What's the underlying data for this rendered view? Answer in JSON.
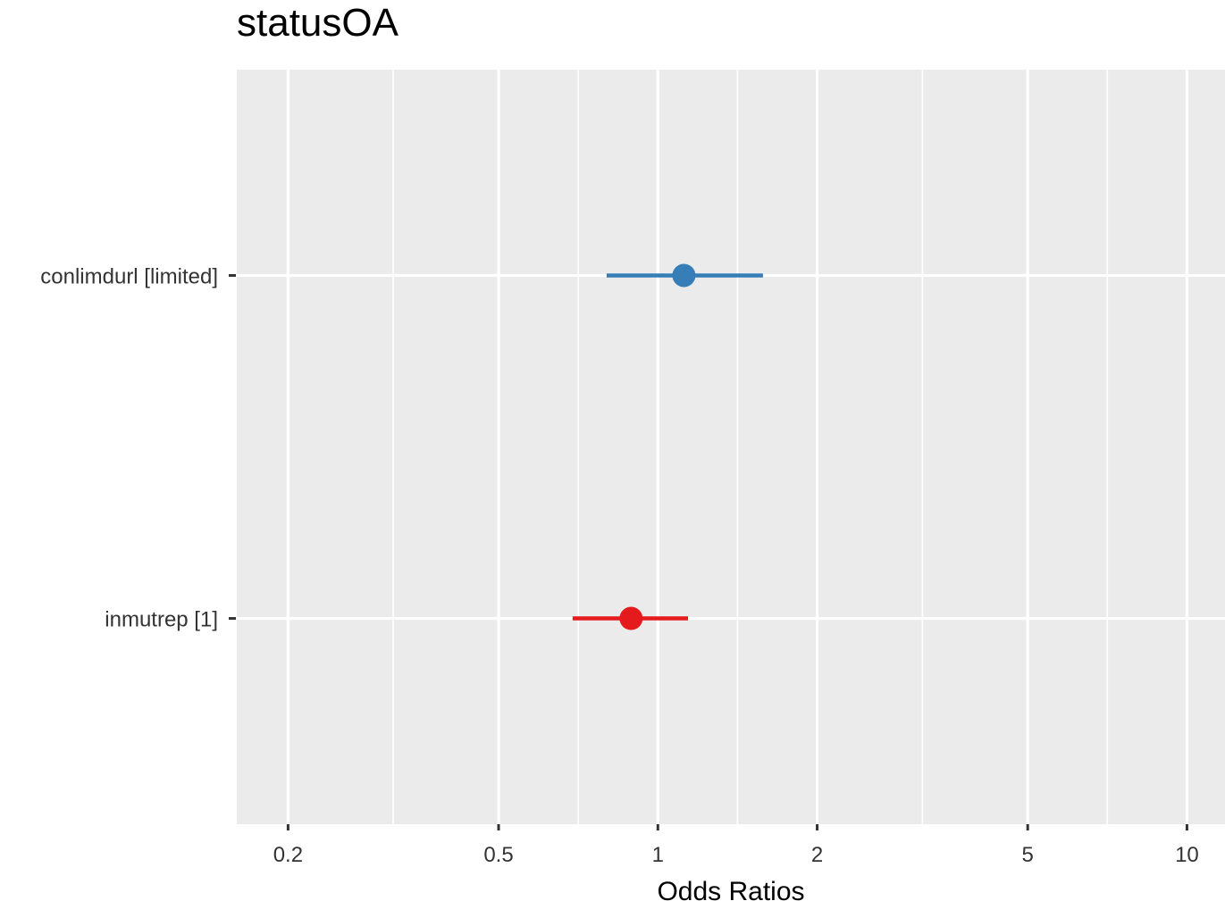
{
  "chart_data": {
    "type": "forest",
    "title": "statusOA",
    "xlabel": "Odds Ratios",
    "ylabel": "",
    "x_scale": "log",
    "xlim": [
      0.16,
      11.8
    ],
    "x_ticks": [
      {
        "value": 0.2,
        "label": "0.2"
      },
      {
        "value": 0.5,
        "label": "0.5"
      },
      {
        "value": 1,
        "label": "1"
      },
      {
        "value": 2,
        "label": "2"
      },
      {
        "value": 5,
        "label": "5"
      },
      {
        "value": 10,
        "label": "10"
      }
    ],
    "minor_grid": [
      0.316,
      0.707,
      1.414,
      3.162,
      7.071
    ],
    "grid": true,
    "legend": "none",
    "terms": [
      {
        "label": "conlimdurl [limited]",
        "estimate": 1.12,
        "ci_low": 0.8,
        "ci_high": 1.58,
        "color": "#377eb8"
      },
      {
        "label": "inmutrep [1]",
        "estimate": 0.89,
        "ci_low": 0.69,
        "ci_high": 1.14,
        "color": "#e41a1c"
      }
    ],
    "colors": {
      "panel": "#ebebeb",
      "grid": "#ffffff",
      "tick": "#333333"
    }
  }
}
